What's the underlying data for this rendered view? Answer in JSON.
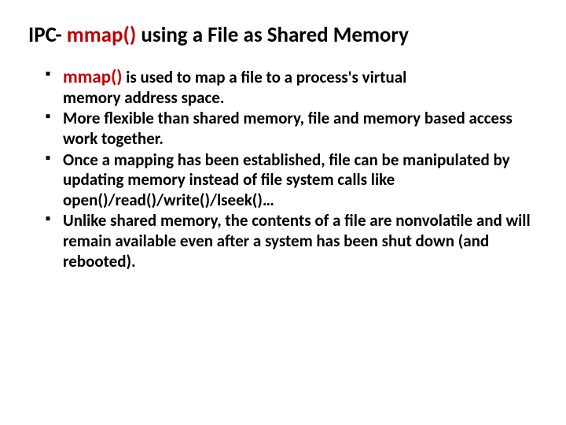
{
  "title": {
    "prefix": "IPC- ",
    "emph": "mmap()",
    "suffix": " using a File as Shared Memory"
  },
  "bullets": [
    {
      "mmap": "mmap()",
      "rest": " is used to map a file to a process's virtual",
      "cont": "memory address space."
    },
    {
      "text": "More flexible than shared memory, file and memory based access work together."
    },
    {
      "text": "Once a mapping has been established, file can be manipulated by updating memory instead of file system calls like open()/read()/write()/lseek()…"
    },
    {
      "text": "Unlike shared memory, the contents of a file are nonvolatile and will remain available even after a system has been shut down (and rebooted)."
    }
  ],
  "colors": {
    "accent": "#c00000",
    "text": "#000000",
    "background": "#ffffff"
  },
  "typography": {
    "title_fontsize": 27,
    "bullet_fontsize": 21,
    "first_bullet_lead_fontsize": 23,
    "font_family": "Calibri"
  }
}
